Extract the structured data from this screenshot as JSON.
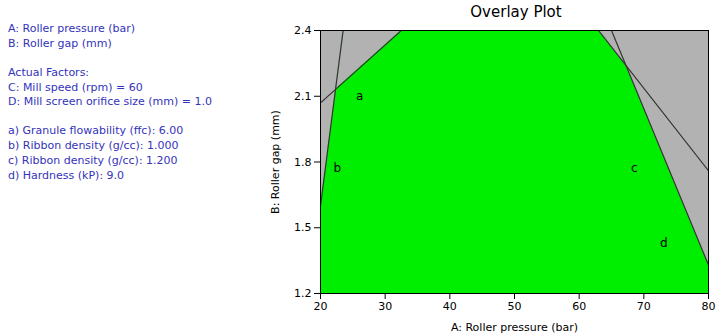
{
  "chart_data": {
    "type": "overlay",
    "title": "Overlay Plot",
    "xlabel": "A: Roller pressure (bar)",
    "ylabel": "B: Roller gap (mm)",
    "xlim": [
      20,
      80
    ],
    "ylim": [
      1.2,
      2.4
    ],
    "xticks": [
      20,
      30,
      40,
      50,
      60,
      70,
      80
    ],
    "yticks": [
      1.2,
      1.5,
      1.8,
      2.1,
      2.4
    ],
    "background_color": "#b2b2b2",
    "lines": [
      {
        "name": "a",
        "x": [
          20,
          32.5
        ],
        "y": [
          2.07,
          2.4
        ],
        "color": "#333333"
      },
      {
        "name": "b",
        "x": [
          20,
          23.5
        ],
        "y": [
          1.6,
          2.4
        ],
        "color": "#333333"
      },
      {
        "name": "c",
        "x": [
          63.0,
          80.0
        ],
        "y": [
          2.4,
          1.76
        ],
        "color": "#333333"
      },
      {
        "name": "d",
        "x": [
          65.0,
          80.0
        ],
        "y": [
          2.4,
          1.33
        ],
        "color": "#333333"
      }
    ],
    "regions": [
      {
        "from": "b",
        "to": "c",
        "color": "#00ee00"
      },
      {
        "from": "b",
        "to": "a",
        "color": "#b2b2b2"
      },
      {
        "from": "c",
        "to": "d",
        "color": "#b2b2b2"
      }
    ],
    "annotations": [
      {
        "text": "a",
        "x": 25.5,
        "y": 2.1
      },
      {
        "text": "b",
        "x": 22.0,
        "y": 1.77
      },
      {
        "text": "c",
        "x": 68.0,
        "y": 1.77
      },
      {
        "text": "d",
        "x": 72.5,
        "y": 1.43
      }
    ],
    "side_text": [
      [
        "A: Roller pressure (bar)",
        "B: Roller gap (mm)"
      ],
      [
        "Actual Factors:",
        "C: Mill speed (rpm) = 60",
        "D: Mill screen orifice size (mm) = 1.0"
      ],
      [
        "a)    Granule flowability (ffc): 6.00",
        "b)    Ribbon density (g/cc): 1.000",
        "c)    Ribbon density (g/cc): 1.200",
        "d)    Hardness (kP): 9.0"
      ]
    ],
    "side_text_color": "#3333bb"
  }
}
